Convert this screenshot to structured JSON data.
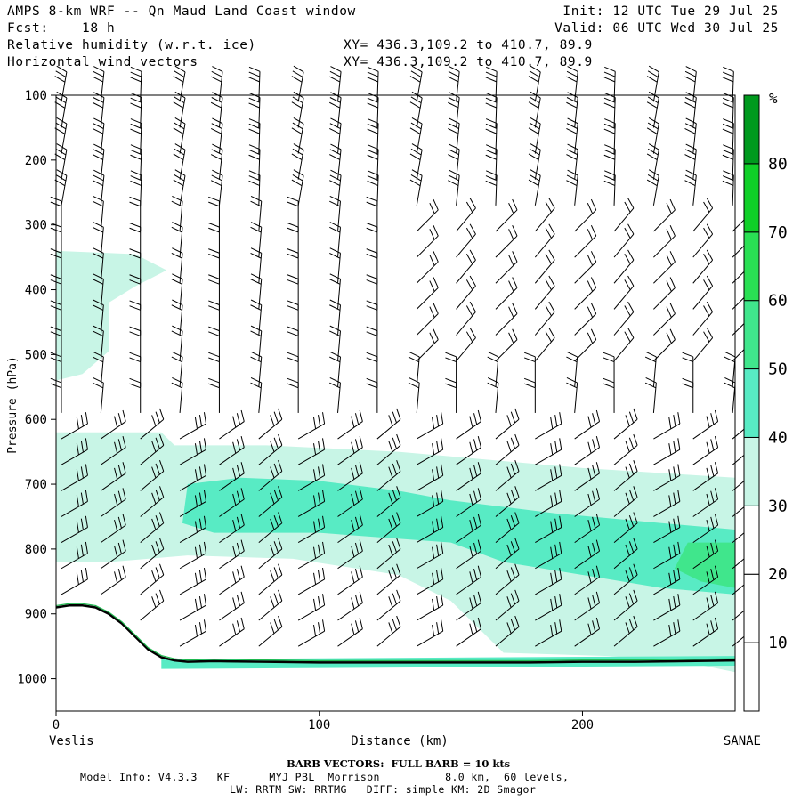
{
  "header": {
    "title": "AMPS 8-km WRF -- Qn Maud Land Coast window",
    "fcst_label": "Fcst:",
    "fcst_value": "18 h",
    "init": "Init: 12 UTC Tue 29 Jul 25",
    "valid": "Valid: 06 UTC Wed 30 Jul 25",
    "field1": "Relative humidity (w.r.t. ice)",
    "field2": "Horizontal wind vectors",
    "xy1": "XY= 436.3,109.2 to 410.7, 89.9",
    "xy2": "XY= 436.3,109.2 to 410.7, 89.9"
  },
  "axis": {
    "left_label": "Veslis",
    "right_label": "SANAE"
  },
  "footer": {
    "barb_note": "BARB VECTORS:  FULL BARB = 10 kts",
    "model_line1": "Model Info: V4.3.3   KF      MYJ PBL  Morrison          8.0 km,  60 levels,",
    "model_line2": "LW: RRTM SW: RRTMG   DIFF: simple KM: 2D Smagor"
  },
  "colorbar": {
    "unit": "%",
    "levels": [
      10,
      20,
      30,
      40,
      50,
      60,
      70,
      80
    ],
    "colors": [
      "#ffffff",
      "#ffffff",
      "#ffffff",
      "#c8f5e6",
      "#58ebc4",
      "#40e68c",
      "#2ae054",
      "#10d028",
      "#009a1e"
    ]
  },
  "chart_data": {
    "type": "heatmap",
    "title": "Relative humidity (w.r.t. ice)",
    "xlabel": "Distance (km)",
    "ylabel": "Pressure (hPa)",
    "xlim": [
      0,
      258
    ],
    "ylim": [
      1050,
      100
    ],
    "xticks": [
      0,
      100,
      200
    ],
    "yticks": [
      100,
      200,
      300,
      400,
      500,
      600,
      700,
      800,
      900,
      1000
    ],
    "grid": false,
    "contour_levels": [
      10,
      20,
      30,
      40,
      50,
      60,
      70,
      80
    ],
    "rh_regions": [
      {
        "level_percent": 30,
        "description": "upper-left moist tongue",
        "outline_km_hpa": [
          [
            0,
            340
          ],
          [
            30,
            345
          ],
          [
            42,
            370
          ],
          [
            30,
            395
          ],
          [
            20,
            420
          ],
          [
            20,
            495
          ],
          [
            10,
            530
          ],
          [
            0,
            540
          ]
        ]
      },
      {
        "level_percent": 30,
        "description": "lower-tropospheric moist layer",
        "outline_km_hpa": [
          [
            0,
            620
          ],
          [
            40,
            620
          ],
          [
            45,
            640
          ],
          [
            80,
            640
          ],
          [
            130,
            650
          ],
          [
            200,
            675
          ],
          [
            258,
            690
          ],
          [
            258,
            990
          ],
          [
            240,
            975
          ],
          [
            210,
            965
          ],
          [
            170,
            960
          ],
          [
            150,
            880
          ],
          [
            130,
            840
          ],
          [
            90,
            815
          ],
          [
            50,
            810
          ],
          [
            20,
            820
          ],
          [
            0,
            820
          ]
        ]
      },
      {
        "level_percent": 40,
        "description": "mid-layer band",
        "outline_km_hpa": [
          [
            50,
            700
          ],
          [
            70,
            690
          ],
          [
            100,
            695
          ],
          [
            130,
            710
          ],
          [
            150,
            725
          ],
          [
            190,
            745
          ],
          [
            230,
            760
          ],
          [
            258,
            770
          ],
          [
            258,
            870
          ],
          [
            230,
            860
          ],
          [
            200,
            840
          ],
          [
            170,
            820
          ],
          [
            150,
            790
          ],
          [
            100,
            775
          ],
          [
            60,
            775
          ],
          [
            48,
            760
          ]
        ]
      },
      {
        "level_percent": 50,
        "description": "embedded moist core",
        "outline_km_hpa": [
          [
            240,
            790
          ],
          [
            258,
            790
          ],
          [
            258,
            860
          ],
          [
            245,
            850
          ],
          [
            235,
            830
          ]
        ]
      },
      {
        "level_percent": 40,
        "description": "near-surface strip",
        "outline_km_hpa": [
          [
            40,
            970
          ],
          [
            258,
            965
          ],
          [
            258,
            980
          ],
          [
            40,
            985
          ]
        ]
      }
    ],
    "surface_pressure_hpa": {
      "x_km": [
        0,
        5,
        10,
        15,
        20,
        25,
        30,
        35,
        40,
        45,
        50,
        60,
        80,
        100,
        120,
        140,
        160,
        180,
        200,
        220,
        240,
        258
      ],
      "p_hpa": [
        890,
        887,
        887,
        890,
        900,
        915,
        935,
        955,
        967,
        972,
        974,
        973,
        974,
        975,
        975,
        975,
        975,
        975,
        974,
        974,
        973,
        972
      ]
    },
    "wind_barbs": {
      "note": "BARB VECTORS:  FULL BARB = 10 kts",
      "x_km": [
        0,
        15,
        30,
        45,
        60,
        75,
        90,
        105,
        120,
        135,
        150,
        165,
        180,
        195,
        210,
        225,
        240,
        255
      ],
      "p_levels_hpa": [
        110,
        150,
        190,
        230,
        270,
        310,
        350,
        390,
        430,
        470,
        510,
        550,
        590,
        630,
        670,
        710,
        750,
        790,
        830,
        870,
        910,
        950
      ]
    }
  }
}
